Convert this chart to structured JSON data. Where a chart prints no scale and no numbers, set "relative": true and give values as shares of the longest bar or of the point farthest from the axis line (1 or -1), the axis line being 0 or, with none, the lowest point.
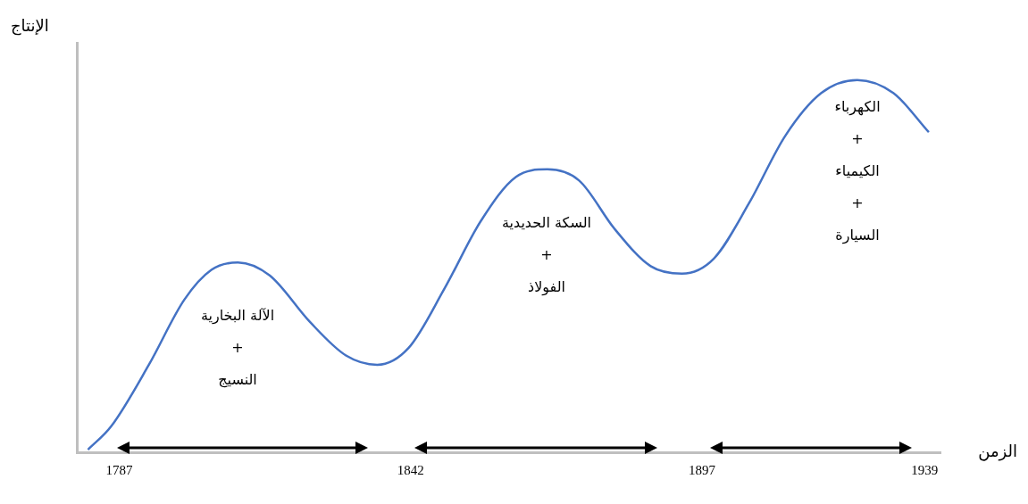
{
  "chart_data": {
    "type": "line",
    "relative": true,
    "xlabel": "الزمن",
    "ylabel": "الإنتاج",
    "x": [
      1781.1,
      1785.5,
      1792.6,
      1799.3,
      1804.4,
      1809.4,
      1815.4,
      1823,
      1829.8,
      1835.7,
      1841.6,
      1848.4,
      1855.2,
      1861.9,
      1867.8,
      1873.8,
      1880.5,
      1887.3,
      1893.2,
      1899.2,
      1905.9,
      1912.7,
      1919.5,
      1926.3,
      1933.1,
      1939.8
    ],
    "series": [
      {
        "color": "#4472c4",
        "values": [
          0.007,
          0.07,
          0.235,
          0.41,
          0.49,
          0.51,
          0.475,
          0.35,
          0.26,
          0.235,
          0.28,
          0.44,
          0.62,
          0.74,
          0.76,
          0.73,
          0.6,
          0.5,
          0.48,
          0.52,
          0.67,
          0.85,
          0.965,
          1.0,
          0.965,
          0.86
        ]
      }
    ],
    "xlim": [
      1779,
      1942
    ],
    "xticks": [
      1787,
      1842,
      1897,
      1939
    ],
    "annotations": [
      "الآلة البخارية\n+\nالنسيج",
      "السكة الحديدية\n+\nالفولاذ",
      "الكهرباء\n+\nالكيمياء\n+\nالسيارة"
    ],
    "grid": false,
    "legend": false,
    "marker": "none",
    "line_style": "solid"
  }
}
